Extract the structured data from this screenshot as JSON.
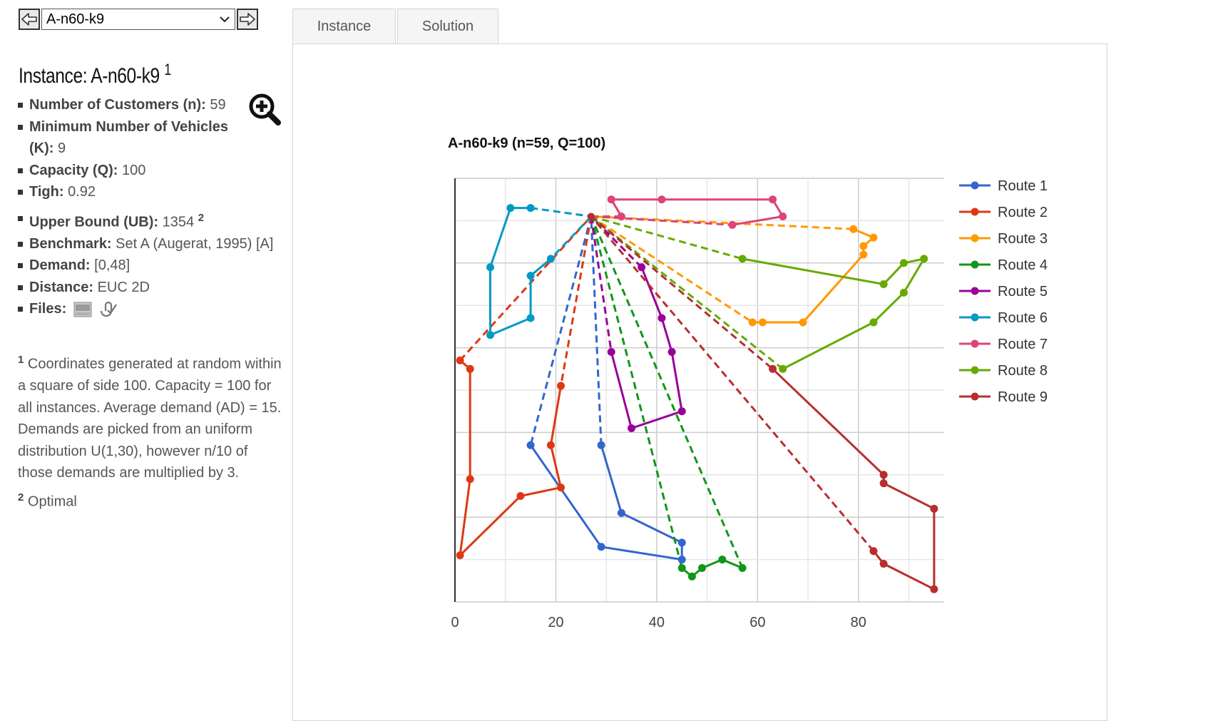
{
  "selector": {
    "prev_label": "previous instance",
    "value": "A-n60-k9",
    "next_label": "next instance"
  },
  "instance": {
    "title_prefix": "Instance:",
    "name": "A-n60-k9",
    "title_note": "1",
    "props": [
      {
        "key": "Number of Customers (n):",
        "value": "59"
      },
      {
        "key": "Minimum Number of Vehicles (K):",
        "value": "9"
      },
      {
        "key": "Capacity (Q):",
        "value": "100"
      },
      {
        "key": "Tigh:",
        "value": "0.92"
      },
      {
        "key": "Upper Bound (UB):",
        "value": "1354",
        "note": "2"
      },
      {
        "key": "Benchmark:",
        "value": "Set A (Augerat, 1995) [A]"
      },
      {
        "key": "Demand:",
        "value": "[0,48]"
      },
      {
        "key": "Distance:",
        "value": "EUC 2D"
      },
      {
        "key": "Files:",
        "value": ""
      }
    ],
    "file_icons": [
      "vrp-file-icon",
      "solution-file-icon"
    ],
    "zoom_icon": "zoom-in-icon"
  },
  "footnotes": [
    {
      "num": "1",
      "text": "Coordinates generated at random within a square of side 100. Capacity = 100 for all instances. Average demand (AD) = 15. Demands are picked from an uniform distribution U(1,30), however n/10 of those demands are multiplied by 3."
    },
    {
      "num": "2",
      "text": "Optimal"
    }
  ],
  "tabs": [
    {
      "label": "Instance",
      "active": false
    },
    {
      "label": "Solution",
      "active": true
    }
  ],
  "chart_data": {
    "type": "line",
    "title": "A-n60-k9 (n=59, Q=100)",
    "xlabel": "",
    "ylabel": "",
    "xlim": [
      0,
      97
    ],
    "ylim": [
      0,
      100
    ],
    "x_ticks": [
      0,
      20,
      40,
      60,
      80
    ],
    "show_y_tick_labels": false,
    "grid": true,
    "legend": "right",
    "depot": [
      27,
      91
    ],
    "series": [
      {
        "name": "Route 1",
        "color": "#3366cc",
        "points": [
          [
            15,
            37
          ],
          [
            29,
            13
          ],
          [
            45,
            10
          ],
          [
            45,
            14
          ],
          [
            33,
            21
          ],
          [
            29,
            37
          ]
        ]
      },
      {
        "name": "Route 2",
        "color": "#dc3912",
        "points": [
          [
            21,
            51
          ],
          [
            19,
            37
          ],
          [
            21,
            27
          ],
          [
            13,
            25
          ],
          [
            1,
            11
          ],
          [
            3,
            29
          ],
          [
            3,
            55
          ],
          [
            1,
            57
          ]
        ]
      },
      {
        "name": "Route 3",
        "color": "#ff9900",
        "points": [
          [
            59,
            66
          ],
          [
            61,
            66
          ],
          [
            69,
            66
          ],
          [
            81,
            82
          ],
          [
            81,
            84
          ],
          [
            83,
            86
          ],
          [
            79,
            88
          ]
        ]
      },
      {
        "name": "Route 4",
        "color": "#109618",
        "points": [
          [
            45,
            8
          ],
          [
            47,
            6
          ],
          [
            49,
            8
          ],
          [
            53,
            10
          ],
          [
            57,
            8
          ]
        ]
      },
      {
        "name": "Route 5",
        "color": "#990099",
        "points": [
          [
            31,
            59
          ],
          [
            35,
            41
          ],
          [
            45,
            45
          ],
          [
            43,
            59
          ],
          [
            41,
            67
          ],
          [
            37,
            79
          ]
        ]
      },
      {
        "name": "Route 6",
        "color": "#0099c6",
        "points": [
          [
            19,
            81
          ],
          [
            15,
            77
          ],
          [
            15,
            67
          ],
          [
            7,
            63
          ],
          [
            7,
            79
          ],
          [
            11,
            93
          ],
          [
            15,
            93
          ]
        ]
      },
      {
        "name": "Route 7",
        "color": "#dd4477",
        "points": [
          [
            55,
            89
          ],
          [
            65,
            91
          ],
          [
            63,
            95
          ],
          [
            41,
            95
          ],
          [
            31,
            95
          ],
          [
            33,
            91
          ]
        ]
      },
      {
        "name": "Route 8",
        "color": "#66aa00",
        "points": [
          [
            57,
            81
          ],
          [
            85,
            75
          ],
          [
            89,
            80
          ],
          [
            93,
            81
          ],
          [
            89,
            73
          ],
          [
            83,
            66
          ],
          [
            65,
            55
          ]
        ]
      },
      {
        "name": "Route 9",
        "color": "#b82e2e",
        "points": [
          [
            63,
            55
          ],
          [
            85,
            30
          ],
          [
            85,
            28
          ],
          [
            95,
            22
          ],
          [
            95,
            3
          ],
          [
            85,
            9
          ],
          [
            83,
            12
          ]
        ]
      }
    ]
  }
}
